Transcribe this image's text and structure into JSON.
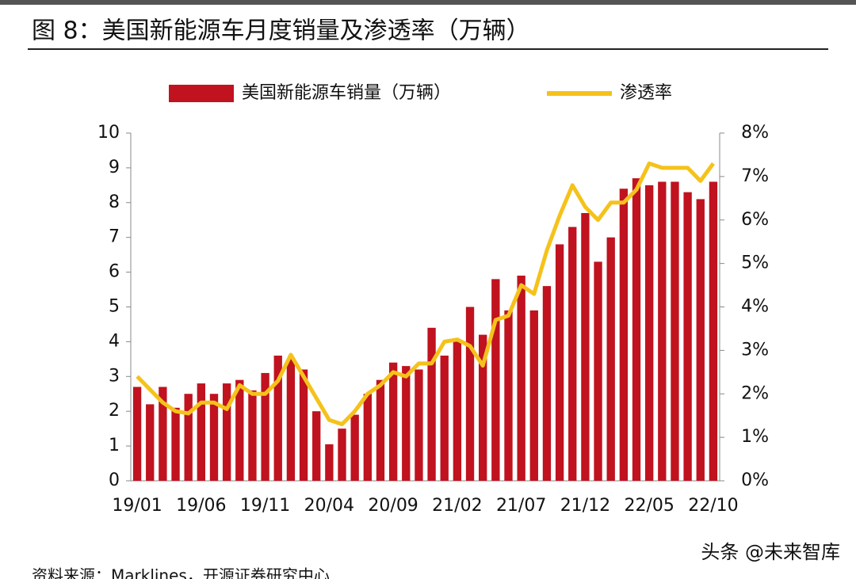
{
  "chart_data": {
    "type": "bar_line",
    "title": "图 8：美国新能源车月度销量及渗透率（万辆）",
    "source": "资料来源：Marklines，开源证券研究中心",
    "watermark": "头条 @未来智库",
    "categories": [
      "19/01",
      null,
      null,
      null,
      null,
      "19/06",
      null,
      null,
      null,
      null,
      "19/11",
      null,
      null,
      null,
      null,
      "20/04",
      null,
      null,
      null,
      null,
      "20/09",
      null,
      null,
      null,
      null,
      "21/02",
      null,
      null,
      null,
      null,
      "21/07",
      null,
      null,
      null,
      null,
      "21/12",
      null,
      null,
      null,
      null,
      "22/05",
      null,
      null,
      null,
      null,
      "22/10"
    ],
    "series": [
      {
        "name": "美国新能源车销量（万辆）",
        "color": "#c0121f",
        "type": "bar",
        "values": [
          2.7,
          2.2,
          2.7,
          2.1,
          2.5,
          2.8,
          2.5,
          2.8,
          2.9,
          2.6,
          3.1,
          3.6,
          3.5,
          3.2,
          2.0,
          1.05,
          1.5,
          1.9,
          2.5,
          2.9,
          3.4,
          3.3,
          3.2,
          4.4,
          3.6,
          4.0,
          5.0,
          4.2,
          5.8,
          4.9,
          5.9,
          4.9,
          5.6,
          6.8,
          7.3,
          7.7,
          6.3,
          7.0,
          8.4,
          8.7,
          8.5,
          8.6,
          8.6,
          8.3,
          8.1,
          8.6
        ]
      },
      {
        "name": "渗透率",
        "color": "#f5c21b",
        "type": "line",
        "axis": "y2",
        "values": [
          2.4,
          2.1,
          1.8,
          1.6,
          1.55,
          1.8,
          1.8,
          1.65,
          2.2,
          2.0,
          2.0,
          2.3,
          2.9,
          2.4,
          1.9,
          1.4,
          1.3,
          1.6,
          2.0,
          2.2,
          2.5,
          2.4,
          2.7,
          2.7,
          3.2,
          3.25,
          3.1,
          2.65,
          3.7,
          3.8,
          4.5,
          4.3,
          5.3,
          6.1,
          6.8,
          6.3,
          6.0,
          6.4,
          6.4,
          6.7,
          7.3,
          7.2,
          7.2,
          7.2,
          6.9,
          7.3
        ]
      }
    ],
    "ylim": [
      0,
      10
    ],
    "yticks": [
      0,
      1,
      2,
      3,
      4,
      5,
      6,
      7,
      8,
      9,
      10
    ],
    "y2lim": [
      0,
      8
    ],
    "y2ticks": [
      {
        "value": 0,
        "label": "0%"
      },
      {
        "value": 1,
        "label": "1%"
      },
      {
        "value": 2,
        "label": "2%"
      },
      {
        "value": 3,
        "label": "3%"
      },
      {
        "value": 4,
        "label": "4%"
      },
      {
        "value": 5,
        "label": "5%"
      },
      {
        "value": 6,
        "label": "6%"
      },
      {
        "value": 7,
        "label": "7%"
      },
      {
        "value": 8,
        "label": "8%"
      }
    ],
    "legend": "top"
  }
}
